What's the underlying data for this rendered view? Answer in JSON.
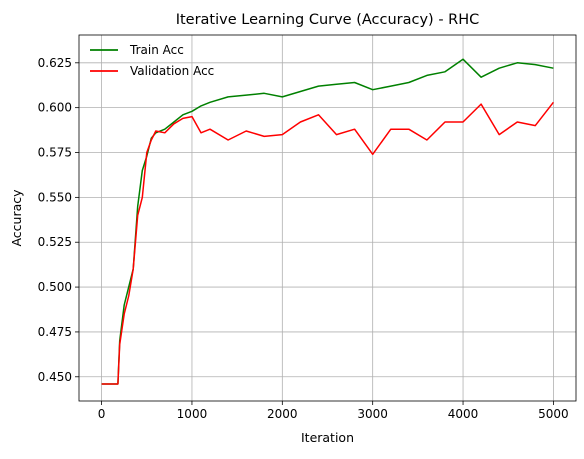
{
  "chart_data": {
    "type": "line",
    "title": "Iterative Learning Curve (Accuracy) - RHC",
    "xlabel": "Iteration",
    "ylabel": "Accuracy",
    "xlim": [
      -250,
      5250
    ],
    "ylim": [
      0.4365,
      0.6405
    ],
    "xticks": [
      0,
      1000,
      2000,
      3000,
      4000,
      5000
    ],
    "xtick_labels": [
      "0",
      "1000",
      "2000",
      "3000",
      "4000",
      "5000"
    ],
    "yticks": [
      0.45,
      0.475,
      0.5,
      0.525,
      0.55,
      0.575,
      0.6,
      0.625
    ],
    "ytick_labels": [
      "0.450",
      "0.475",
      "0.500",
      "0.525",
      "0.550",
      "0.575",
      "0.600",
      "0.625"
    ],
    "grid": true,
    "legend_position": "top-left",
    "x": [
      0,
      100,
      180,
      200,
      250,
      300,
      350,
      400,
      450,
      500,
      550,
      600,
      700,
      800,
      900,
      1000,
      1100,
      1200,
      1400,
      1600,
      1800,
      2000,
      2200,
      2400,
      2600,
      2800,
      3000,
      3200,
      3400,
      3600,
      3800,
      4000,
      4200,
      4400,
      4600,
      4800,
      5000
    ],
    "series": [
      {
        "name": "Train Acc",
        "color": "#008000",
        "values": [
          0.446,
          0.446,
          0.446,
          0.47,
          0.49,
          0.5,
          0.51,
          0.545,
          0.565,
          0.573,
          0.583,
          0.586,
          0.588,
          0.592,
          0.596,
          0.598,
          0.601,
          0.603,
          0.606,
          0.607,
          0.608,
          0.606,
          0.609,
          0.612,
          0.613,
          0.614,
          0.61,
          0.612,
          0.614,
          0.618,
          0.62,
          0.627,
          0.617,
          0.622,
          0.625,
          0.624,
          0.622
        ]
      },
      {
        "name": "Validation Acc",
        "color": "#ff0000",
        "values": [
          0.446,
          0.446,
          0.446,
          0.468,
          0.485,
          0.495,
          0.51,
          0.54,
          0.55,
          0.575,
          0.582,
          0.587,
          0.586,
          0.591,
          0.594,
          0.595,
          0.586,
          0.588,
          0.582,
          0.587,
          0.584,
          0.585,
          0.592,
          0.596,
          0.585,
          0.588,
          0.574,
          0.588,
          0.588,
          0.582,
          0.592,
          0.592,
          0.602,
          0.585,
          0.592,
          0.59,
          0.603
        ]
      }
    ]
  }
}
